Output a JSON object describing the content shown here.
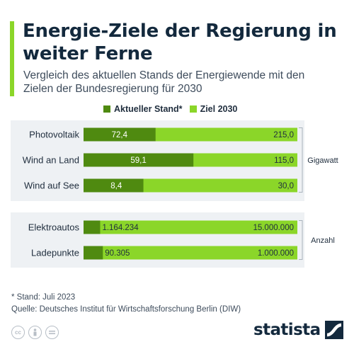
{
  "title": "Energie-Ziele der Regierung in weiter Ferne",
  "subtitle": "Vergleich des aktuellen Stands der Energiewende mit den Zielen der Bundesregierung für 2030",
  "colors": {
    "accent": "#8bd629",
    "current": "#4f8a10",
    "target": "#8bd629",
    "panel": "#eef1f4",
    "text": "#1f2d3d"
  },
  "footer": {
    "note": "* Stand: Juli 2023",
    "source": "Quelle: Deutsches Institut für Wirtschaftsforschung Berlin (DIW)"
  },
  "brand": "statista",
  "license_icons": [
    "cc-icon",
    "person-icon",
    "equals-icon"
  ],
  "chart_data": {
    "type": "bar",
    "orientation": "horizontal",
    "legend": {
      "placement": "top",
      "entries": [
        "Aktueller Stand*",
        "Ziel 2030"
      ]
    },
    "groups": [
      {
        "unit": "Gigawatt",
        "rows": [
          {
            "label": "Photovoltaik",
            "current": 72.4,
            "target": 215.0,
            "current_label": "72,4",
            "target_label": "215,0"
          },
          {
            "label": "Wind an Land",
            "current": 59.1,
            "target": 115.0,
            "current_label": "59,1",
            "target_label": "115,0"
          },
          {
            "label": "Wind auf See",
            "current": 8.4,
            "target": 30.0,
            "current_label": "8,4",
            "target_label": "30,0"
          }
        ]
      },
      {
        "unit": "Anzahl",
        "rows": [
          {
            "label": "Elektroautos",
            "current": 1164234,
            "target": 15000000,
            "current_label": "1.164.234",
            "target_label": "15.000.000"
          },
          {
            "label": "Ladepunkte",
            "current": 90305,
            "target": 1000000,
            "current_label": "90.305",
            "target_label": "1.000.000"
          }
        ]
      }
    ]
  }
}
